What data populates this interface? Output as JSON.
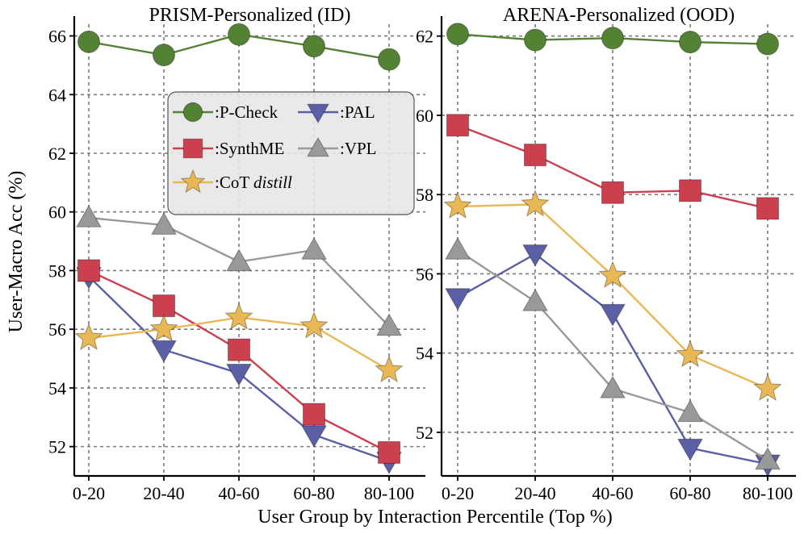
{
  "colors": {
    "P-Check": "#548235",
    "SynthME": "#cc3f4f",
    "CoT distill": "#e9b854",
    "PAL": "#5b5fa6",
    "VPL": "#999999"
  },
  "legend": [
    {
      "key": "P-Check",
      "label": ":P-Check",
      "marker": "circle"
    },
    {
      "key": "PAL",
      "label": ":PAL",
      "marker": "triangle-down"
    },
    {
      "key": "SynthME",
      "label": ":SynthME",
      "marker": "square"
    },
    {
      "key": "VPL",
      "label": ":VPL",
      "marker": "triangle-up"
    },
    {
      "key": "CoT distill",
      "label_prefix": ":CoT ",
      "label_italic": "distill",
      "marker": "star"
    }
  ],
  "ylabel": "User-Macro Acc (%)",
  "xlabel": "User Group by Interaction Percentile (Top %)",
  "chart_data": [
    {
      "type": "line",
      "title": "PRISM-Personalized (ID)",
      "categories": [
        "0-20",
        "20-40",
        "40-60",
        "60-80",
        "80-100"
      ],
      "ylim": [
        51,
        66.4
      ],
      "yticks": [
        52,
        54,
        56,
        58,
        60,
        62,
        64,
        66
      ],
      "grid": true,
      "legend_position": "upper-center",
      "series": [
        {
          "name": "P-Check",
          "marker": "circle",
          "values": [
            65.8,
            65.35,
            66.05,
            65.65,
            65.2
          ]
        },
        {
          "name": "PAL",
          "marker": "triangle-down",
          "values": [
            57.8,
            55.3,
            54.5,
            52.4,
            51.5
          ]
        },
        {
          "name": "SynthME",
          "marker": "square",
          "values": [
            58.0,
            56.8,
            55.3,
            53.1,
            51.8
          ]
        },
        {
          "name": "VPL",
          "marker": "triangle-up",
          "values": [
            59.8,
            59.55,
            58.3,
            58.7,
            56.1
          ]
        },
        {
          "name": "CoT distill",
          "marker": "star",
          "values": [
            55.7,
            56.0,
            56.4,
            56.1,
            54.6
          ]
        }
      ]
    },
    {
      "type": "line",
      "title": "ARENA-Personalized (OOD)",
      "categories": [
        "0-20",
        "20-40",
        "40-60",
        "60-80",
        "80-100"
      ],
      "ylim": [
        50.9,
        62.3
      ],
      "yticks": [
        52,
        54,
        56,
        58,
        60,
        62
      ],
      "grid": true,
      "series": [
        {
          "name": "P-Check",
          "marker": "circle",
          "values": [
            62.05,
            61.9,
            61.95,
            61.85,
            61.8
          ]
        },
        {
          "name": "PAL",
          "marker": "triangle-down",
          "values": [
            55.4,
            56.5,
            55.0,
            51.6,
            51.2
          ]
        },
        {
          "name": "SynthME",
          "marker": "square",
          "values": [
            59.75,
            59.0,
            58.05,
            58.1,
            57.65
          ]
        },
        {
          "name": "VPL",
          "marker": "triangle-up",
          "values": [
            56.6,
            55.3,
            53.1,
            52.5,
            51.3
          ]
        },
        {
          "name": "CoT distill",
          "marker": "star",
          "values": [
            57.7,
            57.75,
            55.95,
            53.95,
            53.1
          ]
        }
      ]
    }
  ]
}
